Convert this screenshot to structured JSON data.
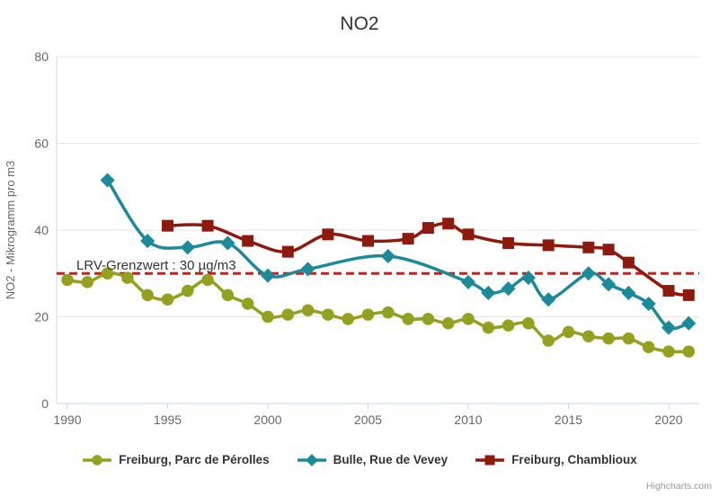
{
  "title": "NO2",
  "credits": "Highcharts.com",
  "chart_data": {
    "type": "line",
    "subtype": "spline",
    "title": "NO2",
    "xlabel": "",
    "ylabel": "NO2 - Mikrogramm pro m3",
    "xlim": [
      1989.5,
      2022
    ],
    "ylim": [
      0,
      80
    ],
    "xticks": [
      1990,
      1995,
      2000,
      2005,
      2010,
      2015,
      2020
    ],
    "yticks": [
      0,
      20,
      40,
      60,
      80
    ],
    "grid": true,
    "legend_position": "bottom",
    "plotline": {
      "value": 30,
      "label": "LRV-Grenzwert : 30 µg/m3",
      "color": "#e8130a",
      "dash": "9,5"
    },
    "series": [
      {
        "name": "Freiburg, Parc de Pérolles",
        "color": "#94a120",
        "marker": "circle",
        "points": [
          [
            1990,
            28.5
          ],
          [
            1991,
            28
          ],
          [
            1992,
            30
          ],
          [
            1993,
            29
          ],
          [
            1994,
            25
          ],
          [
            1995,
            24
          ],
          [
            1996,
            26
          ],
          [
            1997,
            28.5
          ],
          [
            1998,
            25
          ],
          [
            1999,
            23
          ],
          [
            2000,
            20
          ],
          [
            2001,
            20.5
          ],
          [
            2002,
            21.5
          ],
          [
            2003,
            20.5
          ],
          [
            2004,
            19.5
          ],
          [
            2005,
            20.5
          ],
          [
            2006,
            21
          ],
          [
            2007,
            19.5
          ],
          [
            2008,
            19.5
          ],
          [
            2009,
            18.5
          ],
          [
            2010,
            19.5
          ],
          [
            2011,
            17.5
          ],
          [
            2012,
            18
          ],
          [
            2013,
            18.5
          ],
          [
            2014,
            14.5
          ],
          [
            2015,
            16.5
          ],
          [
            2016,
            15.5
          ],
          [
            2017,
            15
          ],
          [
            2018,
            15
          ],
          [
            2019,
            13
          ],
          [
            2020,
            12
          ],
          [
            2021,
            12
          ]
        ]
      },
      {
        "name": "Bulle, Rue de Vevey",
        "color": "#1c8a99",
        "marker": "diamond",
        "points": [
          [
            1992,
            51.5
          ],
          [
            1994,
            37.5
          ],
          [
            1996,
            36
          ],
          [
            1998,
            37
          ],
          [
            2000,
            29.5
          ],
          [
            2002,
            31
          ],
          [
            2006,
            34
          ],
          [
            2010,
            28
          ],
          [
            2011,
            25.5
          ],
          [
            2012,
            26.5
          ],
          [
            2013,
            29
          ],
          [
            2014,
            24
          ],
          [
            2016,
            30
          ],
          [
            2017,
            27.5
          ],
          [
            2018,
            25.5
          ],
          [
            2019,
            23
          ],
          [
            2020,
            17.5
          ],
          [
            2021,
            18.5
          ]
        ]
      },
      {
        "name": "Freiburg, Chamblioux",
        "color": "#8e1a0f",
        "marker": "square",
        "points": [
          [
            1995,
            41
          ],
          [
            1997,
            41
          ],
          [
            1999,
            37.5
          ],
          [
            2001,
            35
          ],
          [
            2003,
            39
          ],
          [
            2005,
            37.5
          ],
          [
            2007,
            38
          ],
          [
            2008,
            40.5
          ],
          [
            2009,
            41.5
          ],
          [
            2010,
            39
          ],
          [
            2012,
            37
          ],
          [
            2014,
            36.5
          ],
          [
            2016,
            36
          ],
          [
            2017,
            35.5
          ],
          [
            2018,
            32.5
          ],
          [
            2020,
            26
          ],
          [
            2021,
            25
          ]
        ]
      }
    ],
    "colors": {
      "grid": "#e6e6e6",
      "axis_line": "#ccd6eb",
      "tick_label": "#666666",
      "title_text": "#333333",
      "plotline_label_text": "#333333"
    }
  }
}
